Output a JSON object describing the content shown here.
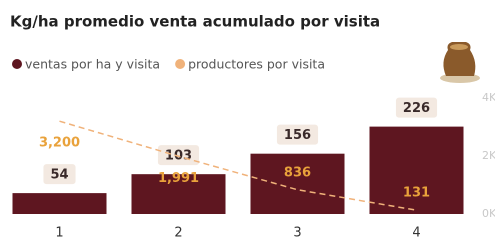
{
  "chart_data": {
    "type": "bar-line",
    "title": "Kg/ha promedio venta acumulado por visita",
    "categories": [
      "1",
      "2",
      "3",
      "4"
    ],
    "ylim": [
      0,
      300
    ],
    "y2lim": [
      0,
      4000
    ],
    "y2ticks": [
      {
        "value": 0,
        "label": "0K"
      },
      {
        "value": 2000,
        "label": "2K"
      },
      {
        "value": 4000,
        "label": "4K"
      }
    ],
    "grid": false,
    "legend": "top-left",
    "series": [
      {
        "name": "ventas por ha y visita",
        "color": "#5e1620",
        "type": "bar",
        "values": [
          54,
          103,
          156,
          226
        ]
      },
      {
        "name": "productores por visita",
        "color": "#f0b27a",
        "type": "line",
        "axis": "y2",
        "values": [
          3200,
          1991,
          836,
          131
        ],
        "value_labels": [
          "3,200",
          "1,991",
          "836",
          "131"
        ]
      }
    ]
  }
}
